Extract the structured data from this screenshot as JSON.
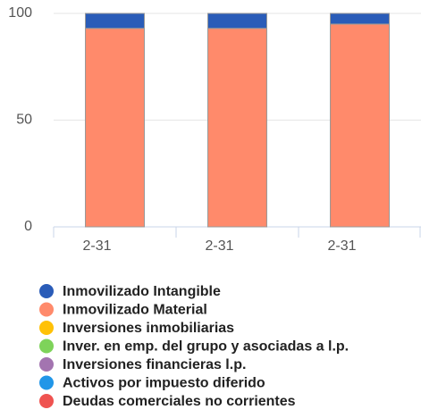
{
  "chart_data": {
    "type": "bar",
    "stacked": true,
    "categories": [
      "2-31",
      "2-31",
      "2-31"
    ],
    "series": [
      {
        "name": "Inmovilizado Intangible",
        "color": "#2a5cb8",
        "values": [
          7,
          7,
          5
        ]
      },
      {
        "name": "Inmovilizado Material",
        "color": "#ff8a6b",
        "values": [
          93,
          93,
          95
        ]
      },
      {
        "name": "Inversiones inmobiliarias",
        "color": "#ffc107",
        "values": [
          0,
          0,
          0
        ]
      },
      {
        "name": "Inver. en emp. del grupo y asociadas a l.p.",
        "color": "#7ed35a",
        "values": [
          0,
          0,
          0
        ]
      },
      {
        "name": "Inversiones financieras l.p.",
        "color": "#a374b0",
        "values": [
          0,
          0,
          0
        ]
      },
      {
        "name": "Activos por impuesto diferido",
        "color": "#2196e8",
        "values": [
          0,
          0,
          0
        ]
      },
      {
        "name": "Deudas comerciales no corrientes",
        "color": "#ef5350",
        "values": [
          0,
          0,
          0
        ]
      }
    ],
    "ylim": [
      0,
      100
    ],
    "yticks": [
      0,
      50,
      100
    ],
    "grid": true
  }
}
